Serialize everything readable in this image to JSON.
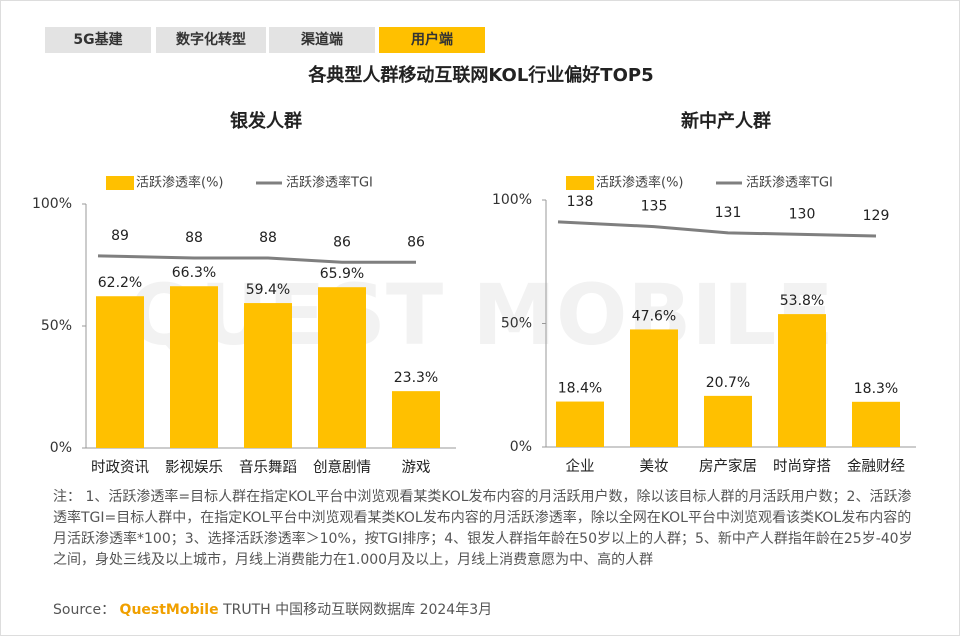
{
  "tabs": {
    "items": [
      "5G基建",
      "数字化转型",
      "渠道端",
      "用户端"
    ],
    "active": 3
  },
  "title": "各典型人群移动互联网KOL行业偏好TOP5",
  "watermark": "QUEST MOBILE",
  "chart_data": [
    {
      "type": "bar",
      "title": "银发人群",
      "categories": [
        "时政资讯",
        "影视娱乐",
        "音乐舞蹈",
        "创意剧情",
        "游戏"
      ],
      "series": [
        {
          "name": "活跃渗透率(%)",
          "color": "#FFC000",
          "values": [
            62.2,
            66.3,
            59.4,
            65.9,
            23.3
          ],
          "value_labels": [
            "62.2%",
            "66.3%",
            "59.4%",
            "65.9%",
            "23.3%"
          ]
        },
        {
          "name": "活跃渗透率TGI",
          "type": "line",
          "axis": "y2",
          "color": "#7f7f7f",
          "values": [
            89,
            88,
            88,
            86,
            86
          ]
        }
      ],
      "ylim": [
        0,
        100
      ],
      "yticks": [
        {
          "value": 0,
          "label": "0%"
        },
        {
          "value": 50,
          "label": "50%"
        },
        {
          "value": 100,
          "label": "100%"
        }
      ],
      "y2lim": [
        0,
        113
      ],
      "legend": "top"
    },
    {
      "type": "bar",
      "title": "新中产人群",
      "categories": [
        "企业",
        "美妆",
        "房产家居",
        "时尚穿搭",
        "金融财经"
      ],
      "series": [
        {
          "name": "活跃渗透率(%)",
          "color": "#FFC000",
          "values": [
            18.4,
            47.6,
            20.7,
            53.8,
            18.3
          ],
          "value_labels": [
            "18.4%",
            "47.6%",
            "20.7%",
            "53.8%",
            "18.3%"
          ]
        },
        {
          "name": "活跃渗透率TGI",
          "type": "line",
          "axis": "y2",
          "color": "#7f7f7f",
          "values": [
            138,
            135,
            131,
            130,
            129
          ]
        }
      ],
      "ylim": [
        0,
        100
      ],
      "yticks": [
        {
          "value": 0,
          "label": "0%"
        },
        {
          "value": 50,
          "label": "50%"
        },
        {
          "value": 100,
          "label": "100%"
        }
      ],
      "y2lim": [
        -6,
        152
      ],
      "legend": "top"
    }
  ],
  "note": "注： 1、活跃渗透率=目标人群在指定KOL平台中浏览观看某类KOL发布内容的月活跃用户数，除以该目标人群的月活跃用户数；2、活跃渗透率TGI=目标人群中，在指定KOL平台中浏览观看某类KOL发布内容的月活跃渗透率，除以全网在KOL平台中浏览观看该类KOL发布内容的月活跃渗透率*100；3、选择活跃渗透率＞10%，按TGI排序；4、银发人群指年龄在50岁以上的人群；5、新中产人群指年龄在25岁-40岁之间，身处三线及以上城市，月线上消费能力在1.000月及以上，月线上消费意愿为中、高的人群",
  "source": {
    "label": "Source：",
    "brand": "QuestMobile",
    "text": "TRUTH 中国移动互联网数据库 2024年3月"
  }
}
